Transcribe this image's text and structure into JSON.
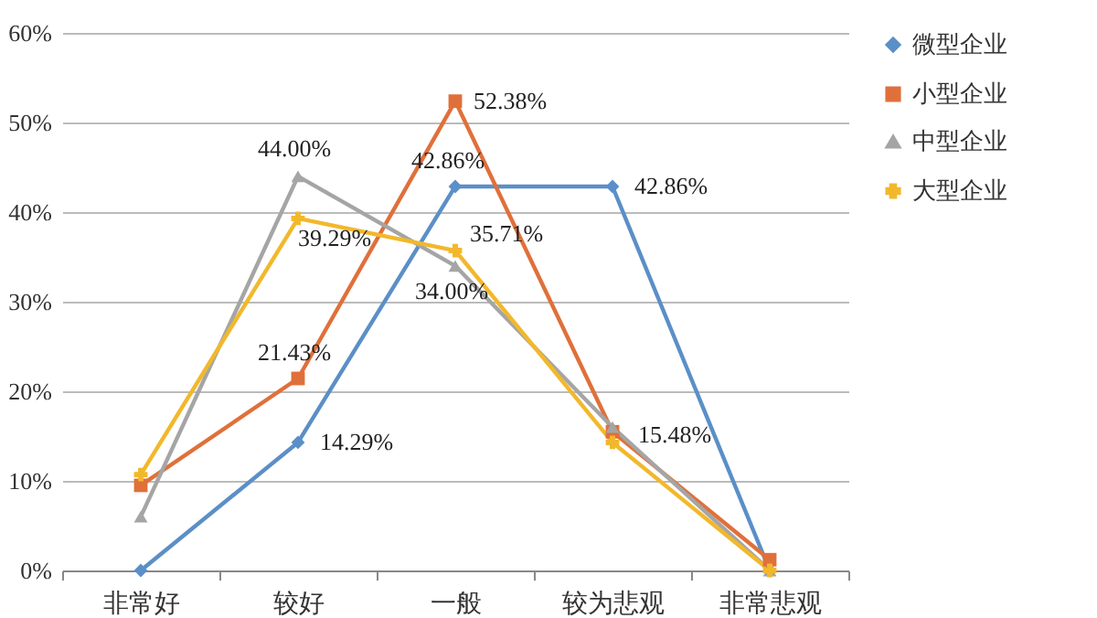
{
  "chart_data": {
    "type": "line",
    "categories": [
      "非常好",
      "较好",
      "一般",
      "较为悲观",
      "非常悲观"
    ],
    "series": [
      {
        "name": "微型企业",
        "color": "#5b8fc7",
        "marker": "diamond",
        "values": [
          0,
          14.29,
          42.86,
          42.86,
          0
        ],
        "value_labels": [
          null,
          "14.29%",
          "42.86%",
          "42.86%",
          null
        ]
      },
      {
        "name": "小型企业",
        "color": "#e0703a",
        "marker": "square",
        "values": [
          9.5,
          21.43,
          52.38,
          15.48,
          1.2
        ],
        "value_labels": [
          null,
          "21.43%",
          "52.38%",
          "15.48%",
          null
        ]
      },
      {
        "name": "中型企业",
        "color": "#a5a5a5",
        "marker": "triangle",
        "values": [
          6,
          44,
          34,
          16,
          0
        ],
        "value_labels": [
          null,
          "44.00%",
          "34.00%",
          null,
          null
        ]
      },
      {
        "name": "大型企业",
        "color": "#f2b82c",
        "marker": "cross",
        "values": [
          10.7,
          39.29,
          35.71,
          14.29,
          0
        ],
        "value_labels": [
          null,
          "39.29%",
          "35.71%",
          null,
          null
        ]
      }
    ],
    "ylim": [
      0,
      60
    ],
    "yticks": [
      {
        "value": 0,
        "label": "0%"
      },
      {
        "value": 10,
        "label": "10%"
      },
      {
        "value": 20,
        "label": "20%"
      },
      {
        "value": 30,
        "label": "30%"
      },
      {
        "value": 40,
        "label": "40%"
      },
      {
        "value": 50,
        "label": "50%"
      },
      {
        "value": 60,
        "label": "60%"
      }
    ],
    "grid": "y",
    "legend": "right",
    "line_style": "solid"
  }
}
